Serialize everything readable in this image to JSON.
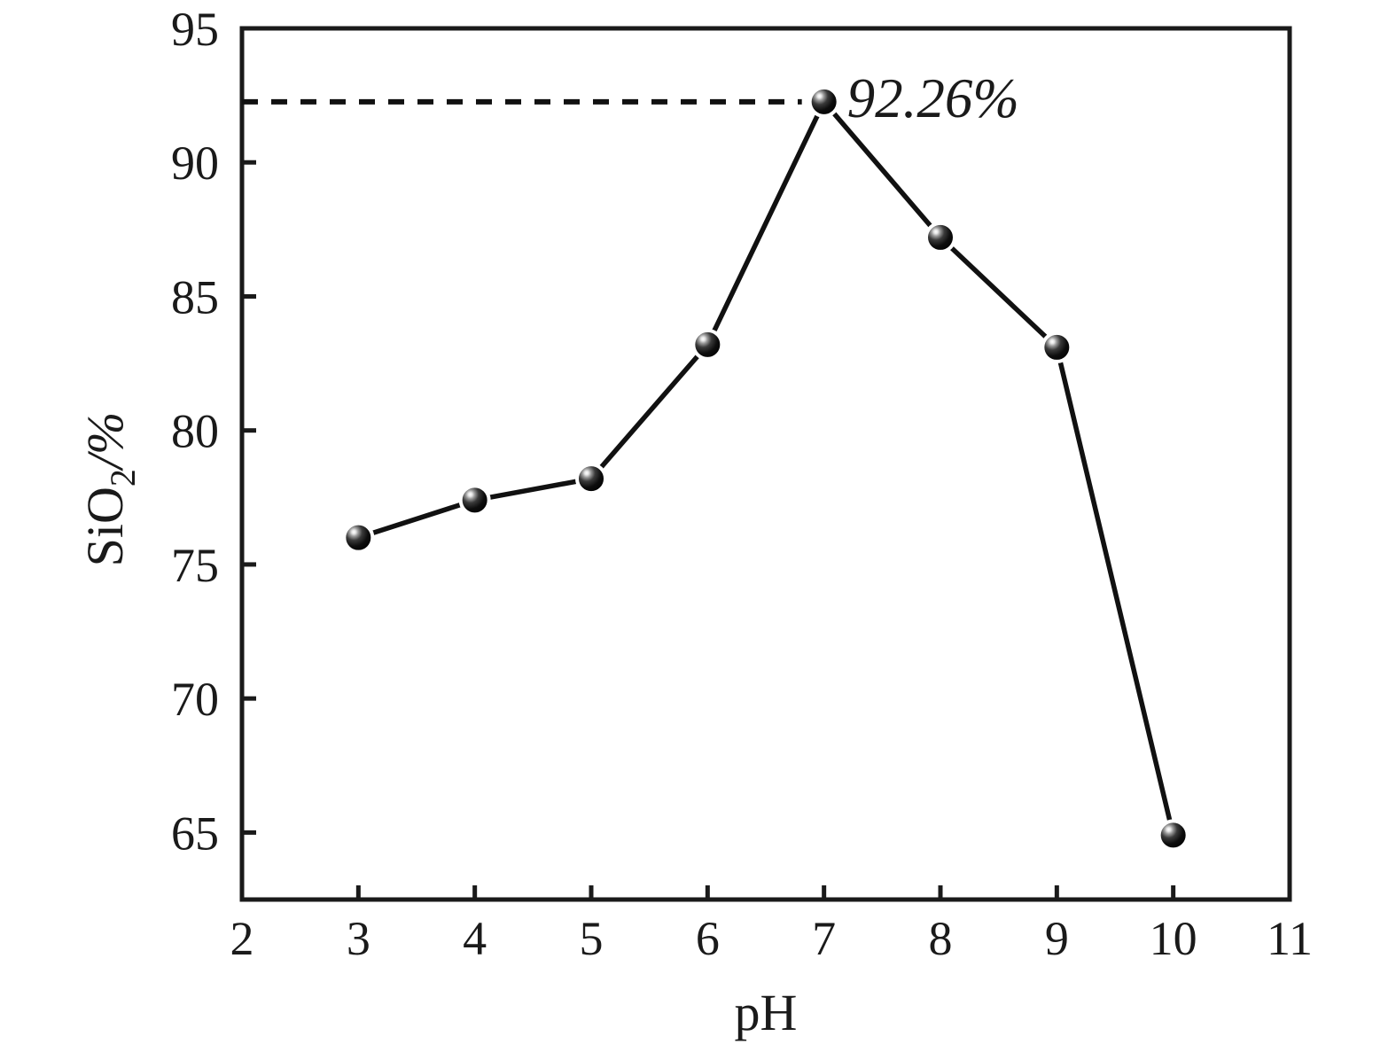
{
  "figure": {
    "background_color": "#ffffff",
    "text_color": "#1a1a1a",
    "ylabel_prefix": "SiO",
    "ylabel_sub": "2",
    "ylabel_suffix": "/%"
  },
  "chart_data": {
    "type": "line",
    "title": "",
    "xlabel": "pH",
    "ylabel": "SiO2/%",
    "x": [
      3,
      4,
      5,
      6,
      7,
      8,
      9,
      10
    ],
    "values": [
      76.0,
      77.4,
      78.2,
      83.2,
      92.26,
      87.2,
      83.1,
      64.9
    ],
    "xlim": [
      2,
      11
    ],
    "ylim": [
      62.5,
      95
    ],
    "x_ticks": [
      2,
      3,
      4,
      5,
      6,
      7,
      8,
      9,
      10,
      11
    ],
    "y_ticks": [
      65,
      70,
      75,
      80,
      85,
      90,
      95
    ],
    "grid": false,
    "legend": "none",
    "axis_frame": "full-box",
    "tick_direction": "in",
    "line_color": "#111111",
    "axis_color": "#1a1a1a",
    "marker_style": "3d-sphere",
    "marker_color": "#000000",
    "annotation": {
      "text": "92.26%",
      "x": 7,
      "y": 92.26
    },
    "guide_line": {
      "style": "dashed",
      "y": 92.26,
      "from_x": 2,
      "to_x": 7
    }
  }
}
